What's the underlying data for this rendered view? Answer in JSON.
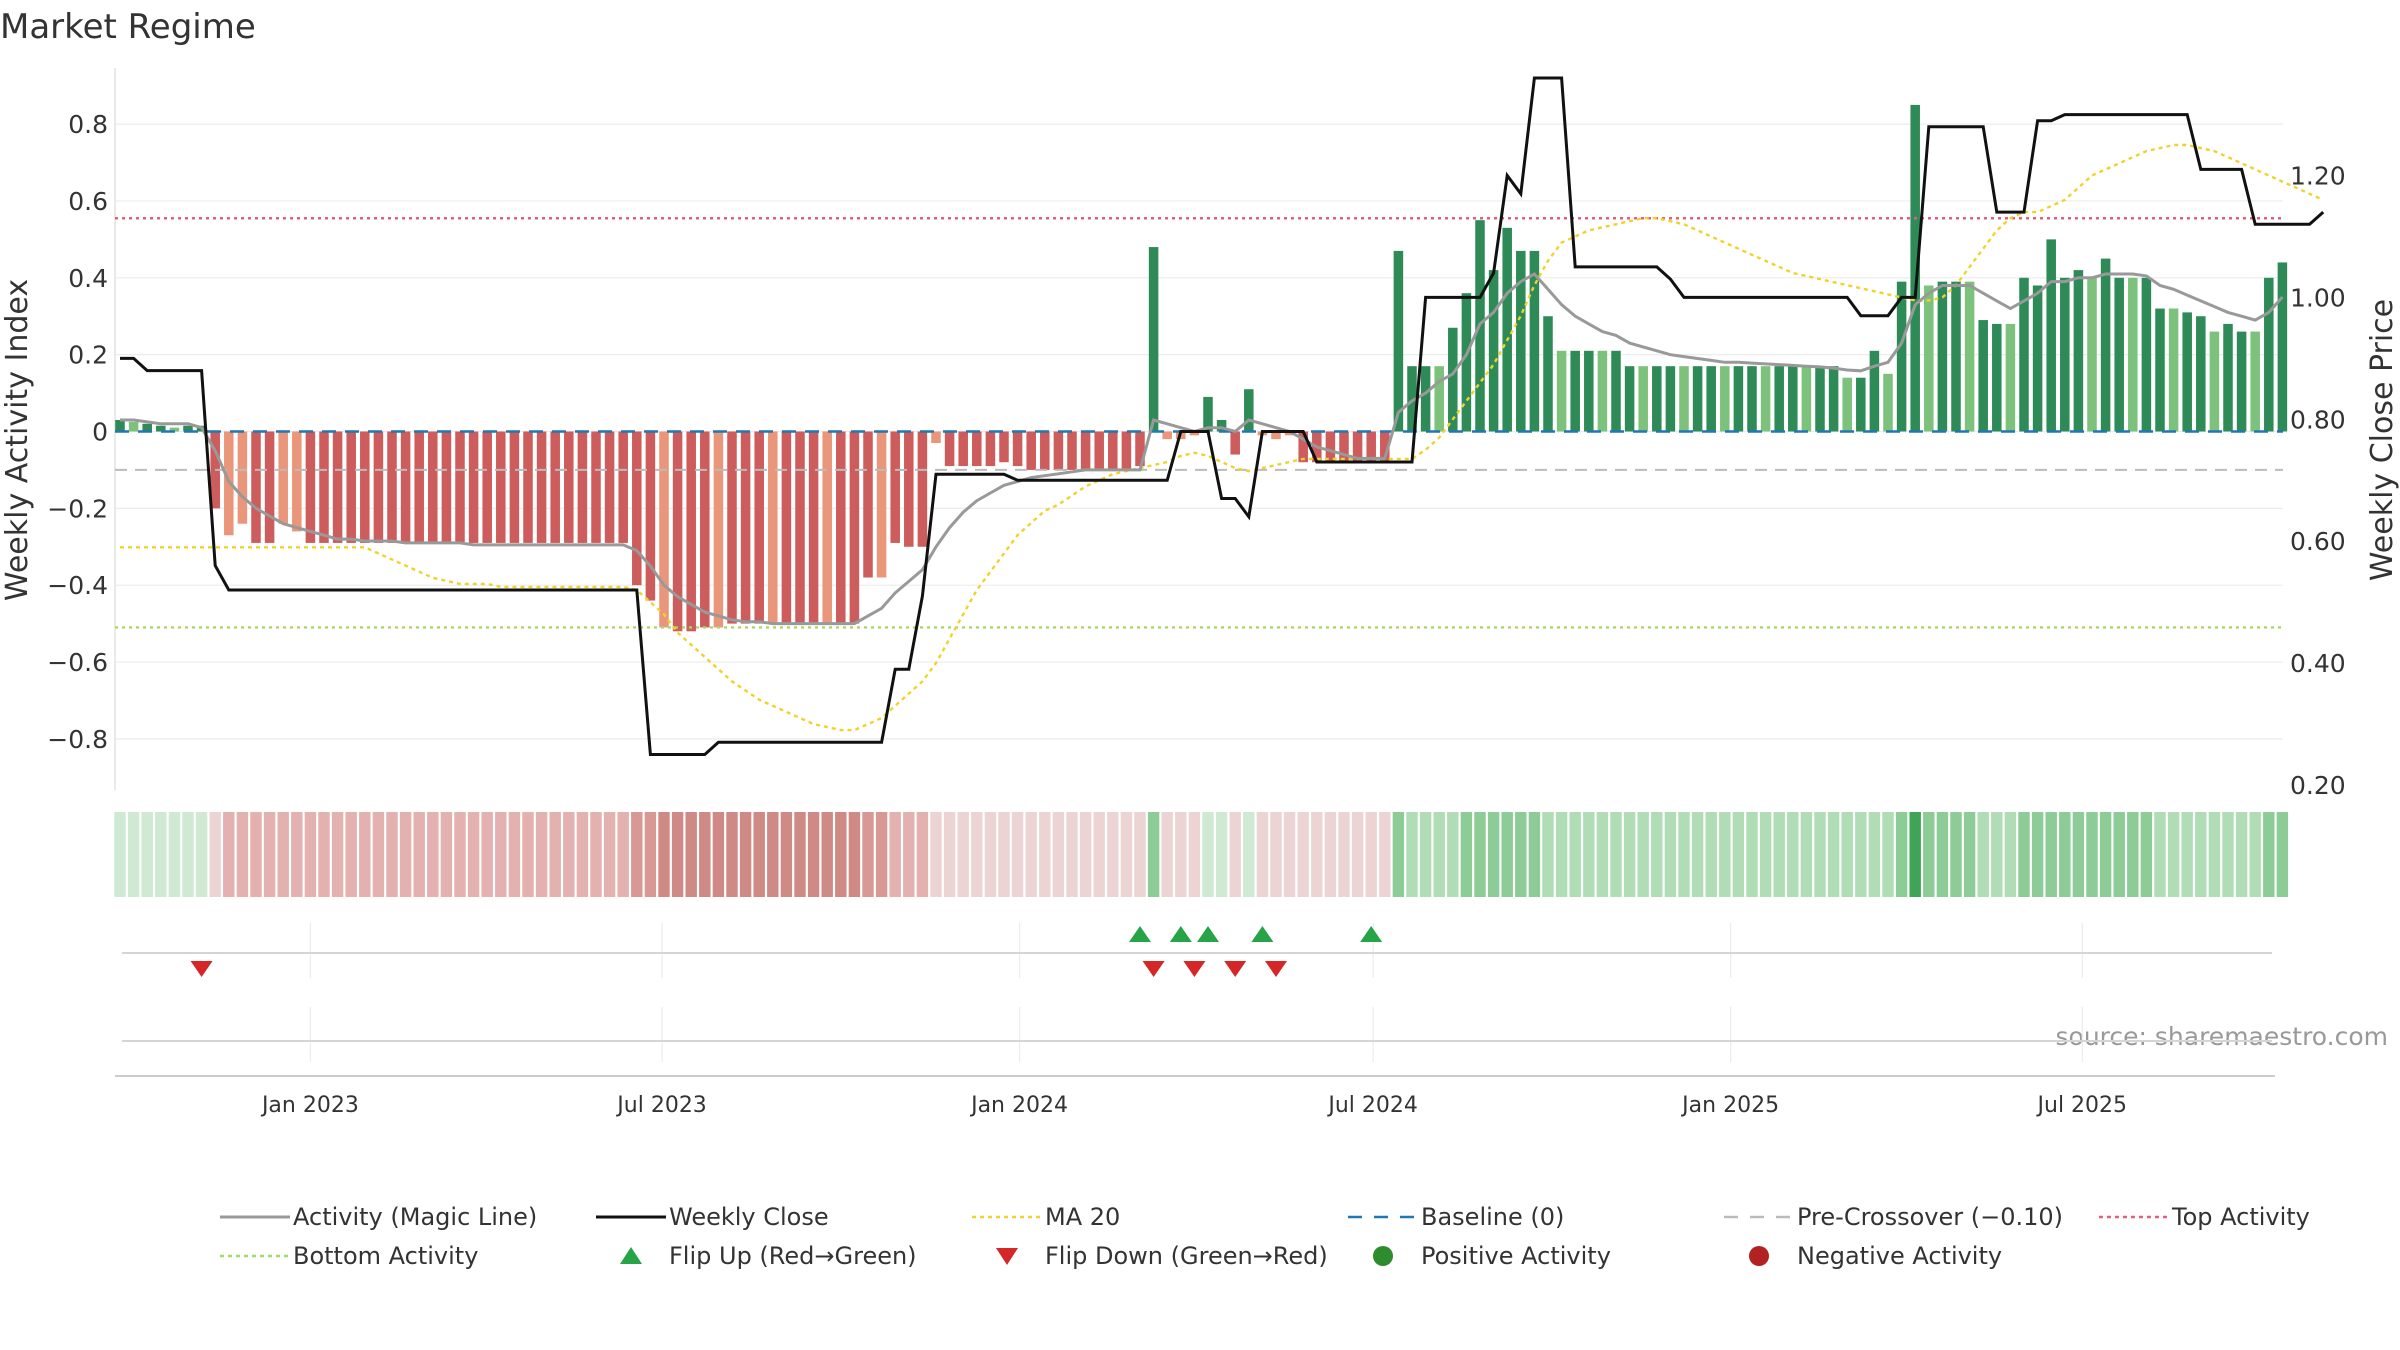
{
  "title": "Market Regime",
  "source": "source: sharemaestro.com",
  "chart_data": {
    "type": "bar",
    "ylabel_left": "Weekly Activity Index",
    "ylabel_right": "Weekly Close Price",
    "y_left_ticks": [
      "0.8",
      "0.6",
      "0.4",
      "0.2",
      "0",
      "−0.2",
      "−0.4",
      "−0.6",
      "−0.8"
    ],
    "y_right_ticks": [
      "1.20",
      "1.00",
      "0.80",
      "0.60",
      "0.40",
      "0.20"
    ],
    "x_ticks": [
      "Jan 2023",
      "Jul 2023",
      "Jan 2024",
      "Jul 2024",
      "Jan 2025",
      "Jul 2025"
    ],
    "x_tick_dates": [
      "2023-01-01",
      "2023-07-01",
      "2024-01-01",
      "2024-07-01",
      "2025-01-01",
      "2025-07-01"
    ],
    "start_date": "2022-09-25",
    "week_interval_days": 7,
    "ylim_left": [
      -0.92,
      0.92
    ],
    "ylim_right": [
      0.2,
      1.36
    ],
    "levels": {
      "top_activity": 0.555,
      "bottom_activity": -0.51,
      "pre_crossover": -0.1,
      "baseline": 0
    },
    "activity": [
      0.03,
      0.025,
      0.02,
      0.015,
      0.01,
      0.015,
      0.015,
      -0.2,
      -0.27,
      -0.24,
      -0.29,
      -0.29,
      -0.24,
      -0.26,
      -0.29,
      -0.29,
      -0.29,
      -0.29,
      -0.29,
      -0.29,
      -0.29,
      -0.29,
      -0.29,
      -0.29,
      -0.29,
      -0.29,
      -0.29,
      -0.29,
      -0.29,
      -0.29,
      -0.29,
      -0.29,
      -0.29,
      -0.29,
      -0.29,
      -0.29,
      -0.29,
      -0.29,
      -0.4,
      -0.44,
      -0.51,
      -0.52,
      -0.52,
      -0.51,
      -0.51,
      -0.5,
      -0.5,
      -0.5,
      -0.5,
      -0.5,
      -0.5,
      -0.5,
      -0.5,
      -0.5,
      -0.5,
      -0.38,
      -0.38,
      -0.29,
      -0.3,
      -0.3,
      -0.03,
      -0.09,
      -0.09,
      -0.09,
      -0.09,
      -0.08,
      -0.09,
      -0.1,
      -0.1,
      -0.1,
      -0.1,
      -0.1,
      -0.1,
      -0.1,
      -0.1,
      -0.09,
      0.48,
      -0.02,
      -0.02,
      -0.01,
      0.09,
      0.03,
      -0.06,
      0.11,
      -0.01,
      -0.02,
      -0.01,
      -0.08,
      -0.08,
      -0.08,
      -0.08,
      -0.08,
      -0.08,
      -0.08,
      0.47,
      0.17,
      0.17,
      0.17,
      0.27,
      0.36,
      0.55,
      0.42,
      0.53,
      0.47,
      0.47,
      0.3,
      0.21,
      0.21,
      0.21,
      0.21,
      0.21,
      0.17,
      0.17,
      0.17,
      0.17,
      0.17,
      0.17,
      0.17,
      0.17,
      0.17,
      0.17,
      0.17,
      0.17,
      0.17,
      0.17,
      0.17,
      0.17,
      0.14,
      0.14,
      0.21,
      0.15,
      0.39,
      0.85,
      0.38,
      0.39,
      0.39,
      0.39,
      0.29,
      0.28,
      0.28,
      0.4,
      0.38,
      0.5,
      0.4,
      0.42,
      0.4,
      0.45,
      0.4,
      0.4,
      0.4,
      0.32,
      0.32,
      0.31,
      0.3,
      0.26,
      0.28,
      0.26,
      0.26,
      0.4,
      0.44
    ],
    "magic_line": [
      0.03,
      0.03,
      0.025,
      0.02,
      0.02,
      0.02,
      0.01,
      -0.05,
      -0.13,
      -0.17,
      -0.2,
      -0.22,
      -0.24,
      -0.25,
      -0.26,
      -0.27,
      -0.28,
      -0.28,
      -0.285,
      -0.285,
      -0.285,
      -0.29,
      -0.29,
      -0.29,
      -0.29,
      -0.29,
      -0.295,
      -0.295,
      -0.295,
      -0.295,
      -0.295,
      -0.295,
      -0.295,
      -0.295,
      -0.295,
      -0.295,
      -0.295,
      -0.295,
      -0.31,
      -0.35,
      -0.4,
      -0.43,
      -0.45,
      -0.47,
      -0.48,
      -0.49,
      -0.495,
      -0.495,
      -0.5,
      -0.5,
      -0.5,
      -0.5,
      -0.5,
      -0.5,
      -0.5,
      -0.48,
      -0.46,
      -0.42,
      -0.39,
      -0.36,
      -0.3,
      -0.25,
      -0.21,
      -0.18,
      -0.16,
      -0.14,
      -0.13,
      -0.12,
      -0.115,
      -0.11,
      -0.105,
      -0.1,
      -0.1,
      -0.1,
      -0.1,
      -0.1,
      0.03,
      0.02,
      0.01,
      0.0,
      0.01,
      0.01,
      0.0,
      0.03,
      0.02,
      0.01,
      0.0,
      -0.02,
      -0.04,
      -0.05,
      -0.06,
      -0.07,
      -0.07,
      -0.07,
      0.05,
      0.08,
      0.1,
      0.13,
      0.15,
      0.2,
      0.28,
      0.31,
      0.36,
      0.39,
      0.41,
      0.37,
      0.33,
      0.3,
      0.28,
      0.26,
      0.25,
      0.23,
      0.22,
      0.21,
      0.2,
      0.195,
      0.19,
      0.185,
      0.18,
      0.18,
      0.178,
      0.176,
      0.174,
      0.172,
      0.17,
      0.168,
      0.165,
      0.16,
      0.158,
      0.17,
      0.18,
      0.23,
      0.33,
      0.36,
      0.38,
      0.38,
      0.38,
      0.36,
      0.34,
      0.32,
      0.34,
      0.36,
      0.39,
      0.39,
      0.4,
      0.4,
      0.41,
      0.41,
      0.41,
      0.405,
      0.38,
      0.37,
      0.355,
      0.34,
      0.325,
      0.31,
      0.3,
      0.29,
      0.31,
      0.35
    ],
    "weekly_close": [
      0.9,
      0.9,
      0.88,
      0.88,
      0.88,
      0.88,
      0.88,
      0.56,
      0.52,
      0.52,
      0.52,
      0.52,
      0.52,
      0.52,
      0.52,
      0.52,
      0.52,
      0.52,
      0.52,
      0.52,
      0.52,
      0.52,
      0.52,
      0.52,
      0.52,
      0.52,
      0.52,
      0.52,
      0.52,
      0.52,
      0.52,
      0.52,
      0.52,
      0.52,
      0.52,
      0.52,
      0.52,
      0.52,
      0.52,
      0.25,
      0.25,
      0.25,
      0.25,
      0.25,
      0.27,
      0.27,
      0.27,
      0.27,
      0.27,
      0.27,
      0.27,
      0.27,
      0.27,
      0.27,
      0.27,
      0.27,
      0.27,
      0.39,
      0.39,
      0.51,
      0.71,
      0.71,
      0.71,
      0.71,
      0.71,
      0.71,
      0.7,
      0.7,
      0.7,
      0.7,
      0.7,
      0.7,
      0.7,
      0.7,
      0.7,
      0.7,
      0.7,
      0.7,
      0.78,
      0.78,
      0.78,
      0.67,
      0.67,
      0.64,
      0.78,
      0.78,
      0.78,
      0.78,
      0.73,
      0.73,
      0.73,
      0.73,
      0.73,
      0.73,
      0.73,
      0.73,
      1.0,
      1.0,
      1.0,
      1.0,
      1.0,
      1.04,
      1.2,
      1.17,
      1.36,
      1.36,
      1.36,
      1.05,
      1.05,
      1.05,
      1.05,
      1.05,
      1.05,
      1.05,
      1.03,
      1.0,
      1.0,
      1.0,
      1.0,
      1.0,
      1.0,
      1.0,
      1.0,
      1.0,
      1.0,
      1.0,
      1.0,
      1.0,
      0.97,
      0.97,
      0.97,
      1.0,
      1.0,
      1.28,
      1.28,
      1.28,
      1.28,
      1.28,
      1.14,
      1.14,
      1.14,
      1.29,
      1.29,
      1.3,
      1.3,
      1.3,
      1.3,
      1.3,
      1.3,
      1.3,
      1.3,
      1.3,
      1.3,
      1.21,
      1.21,
      1.21,
      1.21,
      1.12,
      1.12,
      1.12,
      1.12,
      1.12,
      1.14
    ],
    "ma20": [
      0.59,
      0.59,
      0.59,
      0.59,
      0.59,
      0.59,
      0.59,
      0.59,
      0.59,
      0.59,
      0.59,
      0.59,
      0.59,
      0.59,
      0.59,
      0.59,
      0.59,
      0.59,
      0.59,
      0.58,
      0.57,
      0.56,
      0.55,
      0.54,
      0.535,
      0.53,
      0.53,
      0.53,
      0.525,
      0.525,
      0.525,
      0.525,
      0.525,
      0.525,
      0.525,
      0.525,
      0.525,
      0.525,
      0.52,
      0.5,
      0.48,
      0.45,
      0.43,
      0.41,
      0.39,
      0.37,
      0.355,
      0.34,
      0.33,
      0.32,
      0.31,
      0.3,
      0.295,
      0.29,
      0.29,
      0.3,
      0.31,
      0.33,
      0.35,
      0.37,
      0.4,
      0.44,
      0.48,
      0.52,
      0.55,
      0.58,
      0.61,
      0.63,
      0.65,
      0.66,
      0.675,
      0.69,
      0.7,
      0.71,
      0.715,
      0.72,
      0.725,
      0.73,
      0.74,
      0.745,
      0.74,
      0.73,
      0.72,
      0.715,
      0.72,
      0.725,
      0.73,
      0.735,
      0.735,
      0.735,
      0.735,
      0.735,
      0.735,
      0.735,
      0.735,
      0.735,
      0.75,
      0.77,
      0.8,
      0.83,
      0.86,
      0.89,
      0.93,
      0.97,
      1.02,
      1.06,
      1.09,
      1.1,
      1.11,
      1.115,
      1.12,
      1.125,
      1.13,
      1.13,
      1.125,
      1.12,
      1.11,
      1.1,
      1.09,
      1.08,
      1.07,
      1.06,
      1.05,
      1.04,
      1.035,
      1.03,
      1.025,
      1.02,
      1.015,
      1.01,
      1.005,
      1.0,
      0.995,
      0.995,
      1.0,
      1.02,
      1.05,
      1.08,
      1.11,
      1.13,
      1.14,
      1.14,
      1.15,
      1.16,
      1.18,
      1.2,
      1.21,
      1.22,
      1.23,
      1.24,
      1.245,
      1.25,
      1.25,
      1.245,
      1.24,
      1.23,
      1.22,
      1.21,
      1.2,
      1.19,
      1.18,
      1.17,
      1.16
    ],
    "flip_up_weeks": [
      75,
      78,
      80,
      84,
      92
    ],
    "flip_down_weeks": [
      6,
      76,
      79,
      82,
      85
    ],
    "regime_strip_colors": {
      "green_light": "#cfe9d3",
      "green_mid": "#b0dcb6",
      "green_strong": "#8dcc97",
      "green_peak": "#3fa455",
      "red_light": "#ecd4d4",
      "red_mid": "#e2b1b0",
      "red_strong": "#d89893",
      "red_deep": "#d08a85"
    },
    "series_colors": {
      "bar_green_dark": "#2e8a57",
      "bar_green_light": "#7cc27c",
      "bar_red": "#cd5c5c",
      "bar_salmon": "#e9967a",
      "magic_line": "#999999",
      "weekly_close": "#111111",
      "ma20": "#f0d32a",
      "baseline": "#1f77b4",
      "pre_crossover": "#bbbbbb",
      "top_activity": "#e0607e",
      "bottom_activity": "#a6d96a",
      "flip_up": "#27a348",
      "flip_down": "#d62728",
      "positive_dot": "#2e8b2e",
      "negative_dot": "#b22222"
    },
    "legend": [
      {
        "label": "Activity (Magic Line)",
        "kind": "line",
        "color": "#999999"
      },
      {
        "label": "Weekly Close",
        "kind": "line",
        "color": "#111111"
      },
      {
        "label": "MA 20",
        "kind": "dotted",
        "color": "#f0d32a"
      },
      {
        "label": "Baseline (0)",
        "kind": "dashed",
        "color": "#1f77b4"
      },
      {
        "label": "Pre-Crossover (−0.10)",
        "kind": "dashed",
        "color": "#bbbbbb"
      },
      {
        "label": "Top Activity",
        "kind": "dotted",
        "color": "#e0607e"
      },
      {
        "label": "Bottom Activity",
        "kind": "dotted",
        "color": "#a6d96a"
      },
      {
        "label": "Flip Up (Red→Green)",
        "kind": "tri-up",
        "color": "#27a348"
      },
      {
        "label": "Flip Down (Green→Red)",
        "kind": "tri-down",
        "color": "#d62728"
      },
      {
        "label": "Positive Activity",
        "kind": "dot",
        "color": "#2e8b2e"
      },
      {
        "label": "Negative Activity",
        "kind": "dot",
        "color": "#b22222"
      }
    ]
  }
}
